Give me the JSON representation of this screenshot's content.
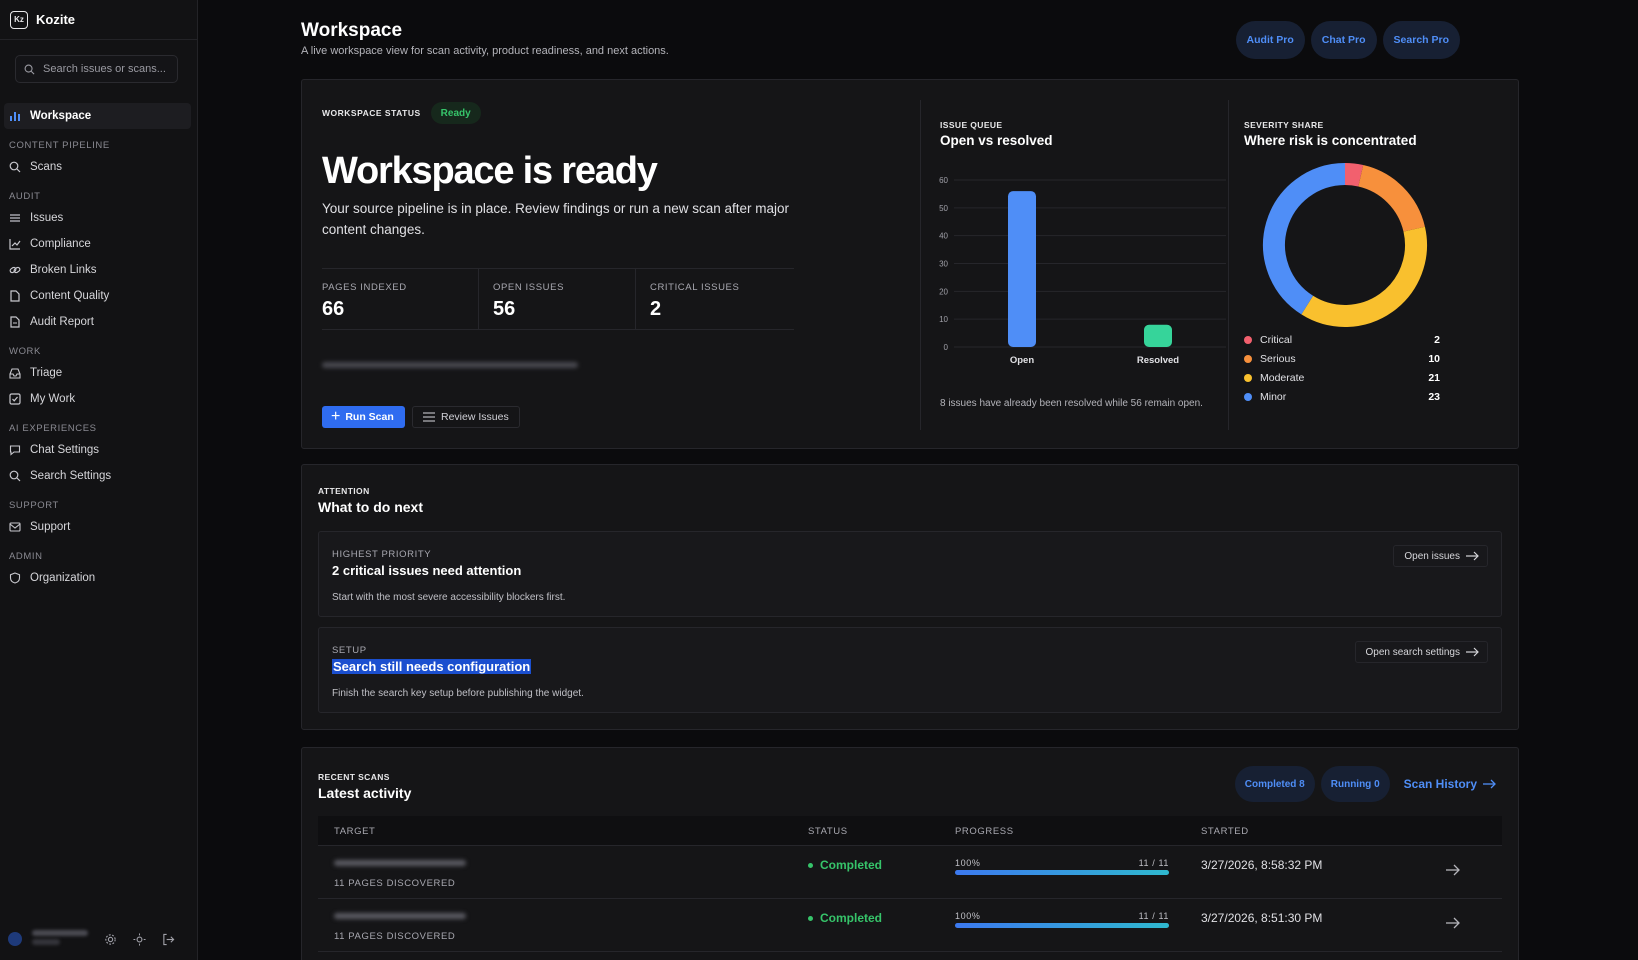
{
  "app": {
    "name": "Kozite",
    "logo_text": "Kz"
  },
  "sidebar": {
    "search_placeholder": "Search issues or scans...",
    "workspace_label": "Workspace",
    "groups": [
      {
        "title": "CONTENT PIPELINE",
        "items": [
          {
            "label": "Scans",
            "icon": "search-icon"
          }
        ]
      },
      {
        "title": "AUDIT",
        "items": [
          {
            "label": "Issues",
            "icon": "list-icon"
          },
          {
            "label": "Compliance",
            "icon": "chart-line-icon"
          },
          {
            "label": "Broken Links",
            "icon": "link-icon"
          },
          {
            "label": "Content Quality",
            "icon": "file-icon"
          },
          {
            "label": "Audit Report",
            "icon": "report-icon"
          }
        ]
      },
      {
        "title": "WORK",
        "items": [
          {
            "label": "Triage",
            "icon": "inbox-icon"
          },
          {
            "label": "My Work",
            "icon": "checkbox-icon"
          }
        ]
      },
      {
        "title": "AI EXPERIENCES",
        "items": [
          {
            "label": "Chat Settings",
            "icon": "chat-icon"
          },
          {
            "label": "Search Settings",
            "icon": "search-settings-icon"
          }
        ]
      },
      {
        "title": "SUPPORT",
        "items": [
          {
            "label": "Support",
            "icon": "mail-icon"
          }
        ]
      },
      {
        "title": "ADMIN",
        "items": [
          {
            "label": "Organization",
            "icon": "shield-icon"
          }
        ]
      }
    ]
  },
  "header": {
    "title": "Workspace",
    "subtitle": "A live workspace view for scan activity, product readiness, and next actions.",
    "pills": [
      "Audit Pro",
      "Chat Pro",
      "Search Pro"
    ]
  },
  "hero": {
    "status_label": "WORKSPACE STATUS",
    "status_badge": "Ready",
    "title": "Workspace is ready",
    "description": "Your source pipeline is in place. Review findings or run a new scan after major content changes.",
    "stats": [
      {
        "label": "PAGES INDEXED",
        "value": "66"
      },
      {
        "label": "OPEN ISSUES",
        "value": "56"
      },
      {
        "label": "CRITICAL ISSUES",
        "value": "2"
      }
    ],
    "run_scan_label": "Run Scan",
    "review_issues_label": "Review Issues"
  },
  "issue_queue": {
    "kicker": "ISSUE QUEUE",
    "title": "Open vs resolved",
    "caption": "8 issues have already been resolved while 56 remain open."
  },
  "severity": {
    "kicker": "SEVERITY SHARE",
    "title": "Where risk is concentrated",
    "items": [
      {
        "name": "Critical",
        "value": 2,
        "color": "#f2606e"
      },
      {
        "name": "Serious",
        "value": 10,
        "color": "#f7903c"
      },
      {
        "name": "Moderate",
        "value": 21,
        "color": "#f9c02e"
      },
      {
        "name": "Minor",
        "value": 23,
        "color": "#4f8ef7"
      }
    ]
  },
  "chart_data": [
    {
      "type": "bar",
      "categories": [
        "Open",
        "Resolved"
      ],
      "values": [
        56,
        8
      ],
      "colors": [
        "#4f8ef7",
        "#36d49a"
      ],
      "yticks": [
        0,
        10,
        20,
        30,
        40,
        50,
        60
      ],
      "ylim": [
        0,
        60
      ],
      "grid": true
    },
    {
      "type": "pie",
      "categories": [
        "Critical",
        "Serious",
        "Moderate",
        "Minor"
      ],
      "values": [
        2,
        10,
        21,
        23
      ],
      "colors": [
        "#f2606e",
        "#f7903c",
        "#f9c02e",
        "#4f8ef7"
      ],
      "legend": "bottom"
    }
  ],
  "attention": {
    "kicker": "ATTENTION",
    "title": "What to do next",
    "tasks": [
      {
        "kicker": "HIGHEST PRIORITY",
        "title": "2 critical issues need attention",
        "description": "Start with the most severe accessibility blockers first.",
        "action": "Open issues"
      },
      {
        "kicker": "SETUP",
        "title": "Search still needs configuration",
        "description": "Finish the search key setup before publishing the widget.",
        "action": "Open search settings"
      }
    ]
  },
  "recent_scans": {
    "kicker": "RECENT SCANS",
    "title": "Latest activity",
    "pills": [
      "Completed 8",
      "Running 0"
    ],
    "history_link": "Scan History",
    "columns": [
      "TARGET",
      "STATUS",
      "PROGRESS",
      "STARTED"
    ],
    "rows": [
      {
        "pages": "11 PAGES DISCOVERED",
        "status": "Completed",
        "percent": "100%",
        "count": "11 / 11",
        "progress": 1.0,
        "started": "3/27/2026, 8:58:32 PM"
      },
      {
        "pages": "11 PAGES DISCOVERED",
        "status": "Completed",
        "percent": "100%",
        "count": "11 / 11",
        "progress": 1.0,
        "started": "3/27/2026, 8:51:30 PM"
      }
    ]
  }
}
